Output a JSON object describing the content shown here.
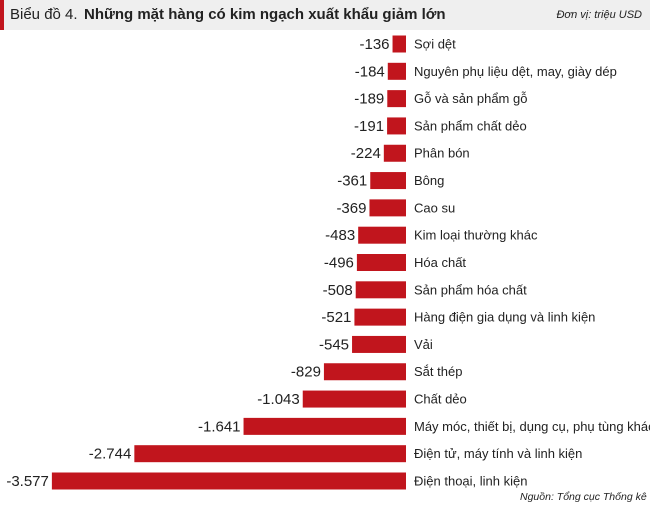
{
  "chart_data": {
    "type": "bar",
    "orientation": "horizontal",
    "chart_label": "Biểu đồ 4.",
    "title": "Những mặt hàng có kim ngạch xuất khẩu giảm lớn",
    "unit": "Đơn vị: triệu USD",
    "source": "Nguồn: Tổng cục Thống kê",
    "categories": [
      "Sợi dệt",
      "Nguyên phụ liệu dệt, may, giày dép",
      "Gỗ và sản phẩm gỗ",
      "Sản phẩm chất dẻo",
      "Phân bón",
      "Bông",
      "Cao su",
      "Kim loại thường khác",
      "Hóa chất",
      "Sản phẩm hóa chất",
      "Hàng điện gia dụng và linh kiện",
      "Vải",
      "Sắt thép",
      "Chất dẻo",
      "Máy móc, thiết bị, dụng cụ, phụ tùng khác",
      "Điện tử, máy tính và linh kiện",
      "Điện thoại, linh kiện"
    ],
    "values": [
      -136,
      -184,
      -189,
      -191,
      -224,
      -361,
      -369,
      -483,
      -496,
      -508,
      -521,
      -545,
      -829,
      -1043,
      -1641,
      -2744,
      -3577
    ],
    "value_labels": [
      "-136",
      "-184",
      "-189",
      "-191",
      "-224",
      "-361",
      "-369",
      "-483",
      "-496",
      "-508",
      "-521",
      "-545",
      "-829",
      "-1.043",
      "-1.641",
      "-2.744",
      "-3.577"
    ],
    "color": "#c1151d",
    "xlim": [
      -4000,
      0
    ]
  }
}
